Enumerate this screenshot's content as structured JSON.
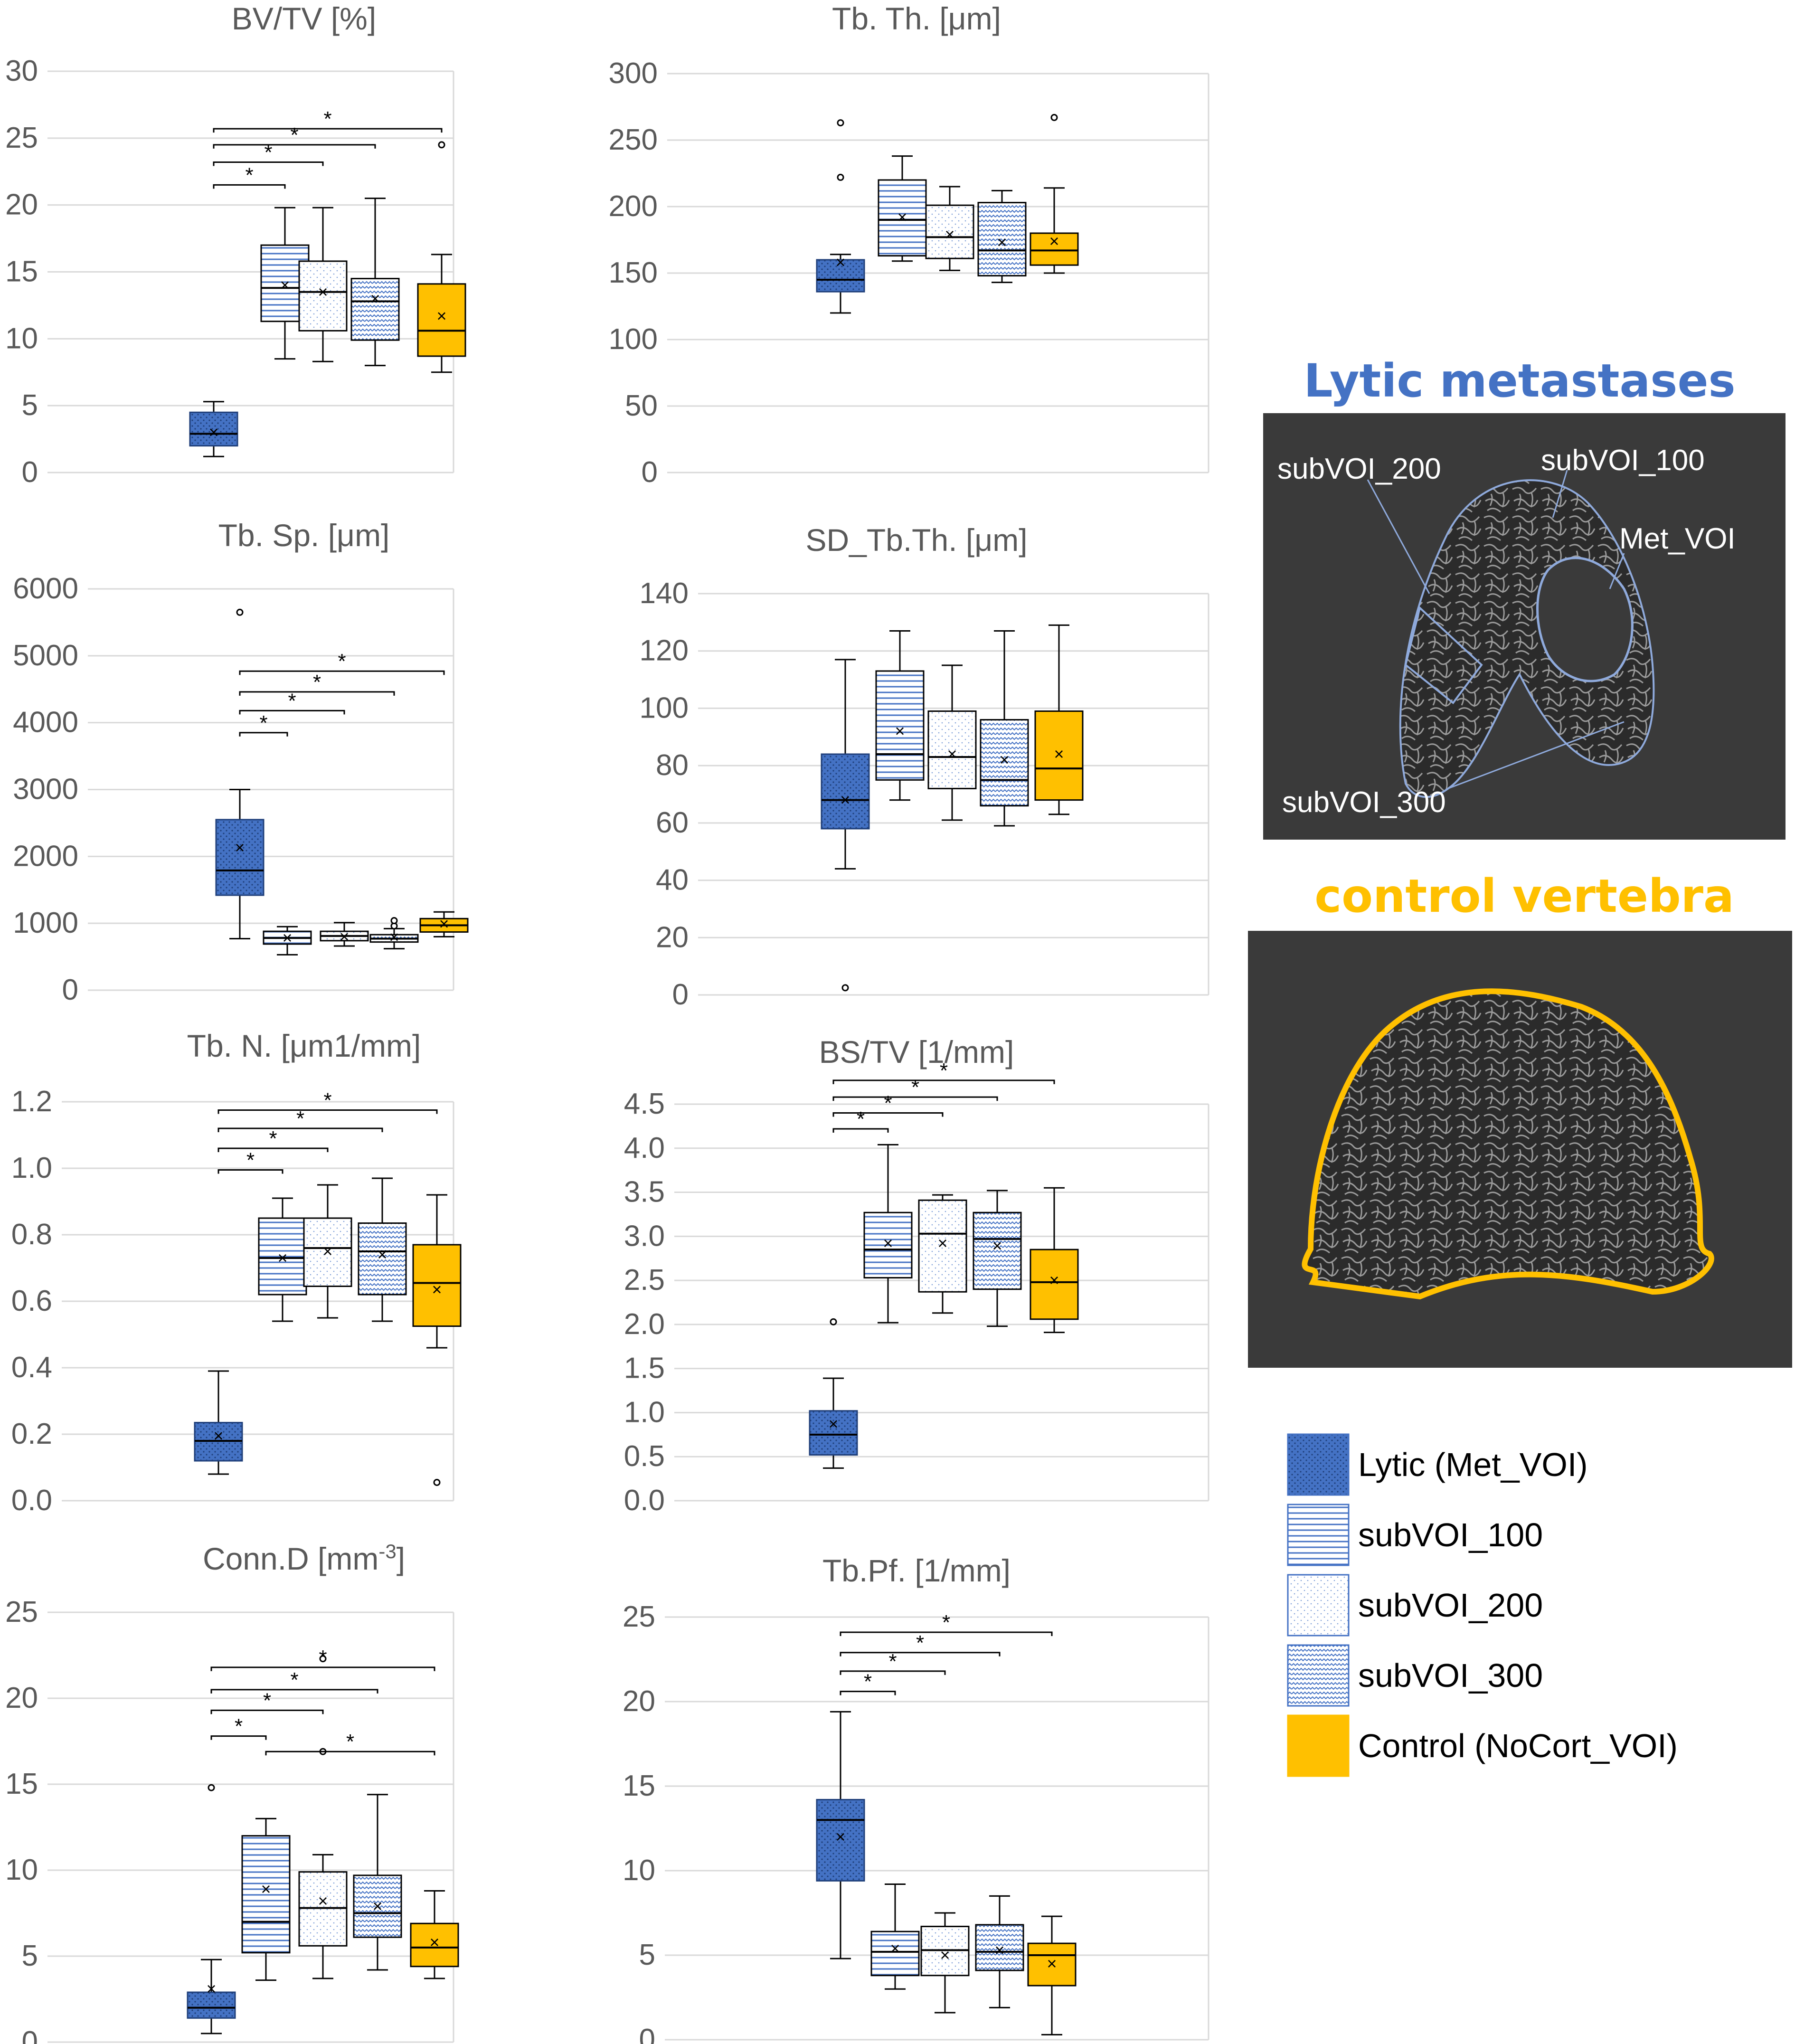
{
  "colors": {
    "lytic": "#4472c4",
    "subvoi": "#4472c4",
    "control": "#ffc000",
    "grid": "#d9d9d9",
    "text": "#595959"
  },
  "chart_data": [
    {
      "type": "box",
      "title": "BV/TV [%]",
      "ylim": [
        0,
        30
      ],
      "yticks": [
        "0",
        "5",
        "10",
        "15",
        "20",
        "25",
        "30"
      ],
      "series": [
        {
          "name": "Lytic (Met_VOI)",
          "pattern": "lytic",
          "min": 1.2,
          "q1": 2.0,
          "median": 2.9,
          "q3": 4.5,
          "max": 5.3,
          "mean": 3.0,
          "outliers": []
        },
        {
          "name": "subVOI_100",
          "pattern": "sub100",
          "min": 8.5,
          "q1": 11.3,
          "median": 13.8,
          "q3": 17.0,
          "max": 19.8,
          "mean": 14.0,
          "outliers": []
        },
        {
          "name": "subVOI_200",
          "pattern": "sub200",
          "min": 8.3,
          "q1": 10.6,
          "median": 13.5,
          "q3": 15.8,
          "max": 19.8,
          "mean": 13.5,
          "outliers": []
        },
        {
          "name": "subVOI_300",
          "pattern": "sub300",
          "min": 8.0,
          "q1": 9.9,
          "median": 12.8,
          "q3": 14.5,
          "max": 20.5,
          "mean": 13.0,
          "outliers": []
        },
        {
          "name": "Control (NoCort_VOI)",
          "pattern": "control",
          "min": 7.5,
          "q1": 8.7,
          "median": 10.6,
          "q3": 14.1,
          "max": 16.3,
          "mean": 11.7,
          "outliers": [
            24.5
          ]
        }
      ],
      "sig": [
        {
          "from": 0,
          "to": 1,
          "y": 21.5,
          "label": "*"
        },
        {
          "from": 0,
          "to": 2,
          "y": 23.2,
          "label": "*"
        },
        {
          "from": 0,
          "to": 3,
          "y": 24.5,
          "label": "*"
        },
        {
          "from": 0,
          "to": 4,
          "y": 25.7,
          "label": "*"
        }
      ]
    },
    {
      "type": "box",
      "title": "Tb. Th. [μm]",
      "ylim": [
        0,
        300
      ],
      "yticks": [
        "0",
        "50",
        "100",
        "150",
        "200",
        "250",
        "300"
      ],
      "series": [
        {
          "name": "Lytic (Met_VOI)",
          "pattern": "lytic",
          "min": 120,
          "q1": 136,
          "median": 145,
          "q3": 160,
          "max": 164,
          "mean": 158,
          "outliers": [
            222,
            263
          ]
        },
        {
          "name": "subVOI_100",
          "pattern": "sub100",
          "min": 159,
          "q1": 163,
          "median": 190,
          "q3": 220,
          "max": 238,
          "mean": 192,
          "outliers": []
        },
        {
          "name": "subVOI_200",
          "pattern": "sub200",
          "min": 152,
          "q1": 161,
          "median": 177,
          "q3": 201,
          "max": 215,
          "mean": 179,
          "outliers": []
        },
        {
          "name": "subVOI_300",
          "pattern": "sub300",
          "min": 143,
          "q1": 148,
          "median": 167,
          "q3": 203,
          "max": 212,
          "mean": 173,
          "outliers": []
        },
        {
          "name": "Control (NoCort_VOI)",
          "pattern": "control",
          "min": 150,
          "q1": 156,
          "median": 167,
          "q3": 180,
          "max": 214,
          "mean": 174,
          "outliers": [
            267
          ]
        }
      ],
      "sig": []
    },
    {
      "type": "box",
      "title": "Tb. Sp. [μm]",
      "ylim": [
        0,
        6000
      ],
      "yticks": [
        "0",
        "1000",
        "2000",
        "3000",
        "4000",
        "5000",
        "6000"
      ],
      "series": [
        {
          "name": "Lytic (Met_VOI)",
          "pattern": "lytic",
          "min": 770,
          "q1": 1420,
          "median": 1790,
          "q3": 2550,
          "max": 3000,
          "mean": 2130,
          "outliers": [
            5650
          ]
        },
        {
          "name": "subVOI_100",
          "pattern": "sub100",
          "min": 530,
          "q1": 690,
          "median": 780,
          "q3": 880,
          "max": 950,
          "mean": 780,
          "outliers": []
        },
        {
          "name": "subVOI_200",
          "pattern": "sub200",
          "min": 660,
          "q1": 740,
          "median": 810,
          "q3": 880,
          "max": 1010,
          "mean": 800,
          "outliers": []
        },
        {
          "name": "subVOI_300",
          "pattern": "sub300",
          "min": 620,
          "q1": 720,
          "median": 770,
          "q3": 830,
          "max": 920,
          "mean": 790,
          "outliers": [
            960,
            1040
          ]
        },
        {
          "name": "Control (NoCort_VOI)",
          "pattern": "control",
          "min": 800,
          "q1": 870,
          "median": 970,
          "q3": 1070,
          "max": 1170,
          "mean": 990,
          "outliers": []
        }
      ],
      "sig": [
        {
          "from": 0,
          "to": 1,
          "y": 3850,
          "label": "*"
        },
        {
          "from": 0,
          "to": 2,
          "y": 4180,
          "label": "*"
        },
        {
          "from": 0,
          "to": 3,
          "y": 4460,
          "label": "*"
        },
        {
          "from": 0,
          "to": 4,
          "y": 4770,
          "label": "*"
        }
      ]
    },
    {
      "type": "box",
      "title": "SD_Tb.Th. [μm]",
      "ylim": [
        0,
        140
      ],
      "yticks": [
        "0",
        "20",
        "40",
        "60",
        "80",
        "100",
        "120",
        "140"
      ],
      "series": [
        {
          "name": "Lytic (Met_VOI)",
          "pattern": "lytic",
          "min": 44,
          "q1": 58,
          "median": 68,
          "q3": 84,
          "max": 117,
          "mean": 68,
          "outliers": [
            2.5
          ]
        },
        {
          "name": "subVOI_100",
          "pattern": "sub100",
          "min": 68,
          "q1": 75,
          "median": 84,
          "q3": 113,
          "max": 127,
          "mean": 92,
          "outliers": []
        },
        {
          "name": "subVOI_200",
          "pattern": "sub200",
          "min": 61,
          "q1": 72,
          "median": 83,
          "q3": 99,
          "max": 115,
          "mean": 84,
          "outliers": []
        },
        {
          "name": "subVOI_300",
          "pattern": "sub300",
          "min": 59,
          "q1": 66,
          "median": 75,
          "q3": 96,
          "max": 127,
          "mean": 82,
          "outliers": []
        },
        {
          "name": "Control (NoCort_VOI)",
          "pattern": "control",
          "min": 63,
          "q1": 68,
          "median": 79,
          "q3": 99,
          "max": 129,
          "mean": 84,
          "outliers": []
        }
      ],
      "sig": []
    },
    {
      "type": "box",
      "title": "Tb. N. [μm1/mm]",
      "ylim": [
        0,
        1.2
      ],
      "yticks": [
        "0.0",
        "0.2",
        "0.4",
        "0.6",
        "0.8",
        "1.0",
        "1.2"
      ],
      "series": [
        {
          "name": "Lytic (Met_VOI)",
          "pattern": "lytic",
          "min": 0.08,
          "q1": 0.12,
          "median": 0.18,
          "q3": 0.235,
          "max": 0.39,
          "mean": 0.195,
          "outliers": []
        },
        {
          "name": "subVOI_100",
          "pattern": "sub100",
          "min": 0.54,
          "q1": 0.62,
          "median": 0.73,
          "q3": 0.85,
          "max": 0.91,
          "mean": 0.73,
          "outliers": []
        },
        {
          "name": "subVOI_200",
          "pattern": "sub200",
          "min": 0.55,
          "q1": 0.645,
          "median": 0.76,
          "q3": 0.85,
          "max": 0.95,
          "mean": 0.75,
          "outliers": []
        },
        {
          "name": "subVOI_300",
          "pattern": "sub300",
          "min": 0.54,
          "q1": 0.62,
          "median": 0.75,
          "q3": 0.835,
          "max": 0.97,
          "mean": 0.74,
          "outliers": []
        },
        {
          "name": "Control (NoCort_VOI)",
          "pattern": "control",
          "min": 0.46,
          "q1": 0.525,
          "median": 0.655,
          "q3": 0.77,
          "max": 0.92,
          "mean": 0.635,
          "outliers": [
            0.055
          ]
        }
      ],
      "sig": [
        {
          "from": 0,
          "to": 1,
          "y": 0.995,
          "label": "*"
        },
        {
          "from": 0,
          "to": 2,
          "y": 1.06,
          "label": "*"
        },
        {
          "from": 0,
          "to": 3,
          "y": 1.12,
          "label": "*"
        },
        {
          "from": 0,
          "to": 4,
          "y": 1.175,
          "label": "*"
        }
      ]
    },
    {
      "type": "box",
      "title": "BS/TV [1/mm]",
      "ylim": [
        0,
        4.5
      ],
      "yticks": [
        "0.0",
        "0.5",
        "1.0",
        "1.5",
        "2.0",
        "2.5",
        "3.0",
        "3.5",
        "4.0",
        "4.5"
      ],
      "series": [
        {
          "name": "Lytic (Met_VOI)",
          "pattern": "lytic",
          "min": 0.37,
          "q1": 0.52,
          "median": 0.75,
          "q3": 1.02,
          "max": 1.39,
          "mean": 0.87,
          "outliers": [
            2.03
          ]
        },
        {
          "name": "subVOI_100",
          "pattern": "sub100",
          "min": 2.02,
          "q1": 2.53,
          "median": 2.85,
          "q3": 3.27,
          "max": 4.04,
          "mean": 2.92,
          "outliers": []
        },
        {
          "name": "subVOI_200",
          "pattern": "sub200",
          "min": 2.13,
          "q1": 2.37,
          "median": 3.03,
          "q3": 3.41,
          "max": 3.47,
          "mean": 2.92,
          "outliers": []
        },
        {
          "name": "subVOI_300",
          "pattern": "sub300",
          "min": 1.98,
          "q1": 2.4,
          "median": 2.97,
          "q3": 3.27,
          "max": 3.52,
          "mean": 2.89,
          "outliers": []
        },
        {
          "name": "Control (NoCort_VOI)",
          "pattern": "control",
          "min": 1.91,
          "q1": 2.06,
          "median": 2.48,
          "q3": 2.85,
          "max": 3.55,
          "mean": 2.5,
          "outliers": []
        }
      ],
      "sig": [
        {
          "from": 0,
          "to": 1,
          "y": 4.22,
          "label": "*"
        },
        {
          "from": 0,
          "to": 2,
          "y": 4.4,
          "label": "*"
        },
        {
          "from": 0,
          "to": 3,
          "y": 4.58,
          "label": "*"
        },
        {
          "from": 0,
          "to": 4,
          "y": 4.77,
          "label": "*"
        }
      ]
    },
    {
      "type": "box",
      "title": "Conn.D [mm",
      "title_sup": "-3",
      "title_end": "]",
      "ylim": [
        0,
        25
      ],
      "yticks": [
        "0",
        "5",
        "10",
        "15",
        "20",
        "25"
      ],
      "series": [
        {
          "name": "Lytic (Met_VOI)",
          "pattern": "lytic",
          "min": 0.5,
          "q1": 1.4,
          "median": 2.0,
          "q3": 2.9,
          "max": 4.8,
          "mean": 3.1,
          "outliers": [
            14.8
          ]
        },
        {
          "name": "subVOI_100",
          "pattern": "sub100",
          "min": 3.6,
          "q1": 5.2,
          "median": 7.0,
          "q3": 12.0,
          "max": 13.0,
          "mean": 8.9,
          "outliers": []
        },
        {
          "name": "subVOI_200",
          "pattern": "sub200",
          "min": 3.7,
          "q1": 5.6,
          "median": 7.8,
          "q3": 9.9,
          "max": 10.9,
          "mean": 8.2,
          "outliers": [
            16.9,
            22.3
          ]
        },
        {
          "name": "subVOI_300",
          "pattern": "sub300",
          "min": 4.2,
          "q1": 6.1,
          "median": 7.5,
          "q3": 9.7,
          "max": 14.4,
          "mean": 7.9,
          "outliers": []
        },
        {
          "name": "Control (NoCort_VOI)",
          "pattern": "control",
          "min": 3.7,
          "q1": 4.4,
          "median": 5.5,
          "q3": 6.9,
          "max": 8.8,
          "mean": 5.8,
          "outliers": []
        }
      ],
      "sig": [
        {
          "from": 0,
          "to": 1,
          "y": 17.8,
          "label": "*"
        },
        {
          "from": 0,
          "to": 2,
          "y": 19.3,
          "label": "*"
        },
        {
          "from": 0,
          "to": 3,
          "y": 20.5,
          "label": "*"
        },
        {
          "from": 0,
          "to": 4,
          "y": 21.8,
          "label": "*"
        },
        {
          "from": 1,
          "to": 4,
          "y": 16.9,
          "label": "*"
        }
      ]
    },
    {
      "type": "box",
      "title": "Tb.Pf. [1/mm]",
      "ylim": [
        0,
        25
      ],
      "yticks": [
        "0",
        "5",
        "10",
        "15",
        "20",
        "25"
      ],
      "series": [
        {
          "name": "Lytic (Met_VOI)",
          "pattern": "lytic",
          "min": 4.8,
          "q1": 9.4,
          "median": 13.0,
          "q3": 14.2,
          "max": 19.4,
          "mean": 12.0,
          "outliers": []
        },
        {
          "name": "subVOI_100",
          "pattern": "sub100",
          "min": 3.0,
          "q1": 3.8,
          "median": 5.2,
          "q3": 6.4,
          "max": 9.2,
          "mean": 5.4,
          "outliers": []
        },
        {
          "name": "subVOI_200",
          "pattern": "sub200",
          "min": 1.6,
          "q1": 3.8,
          "median": 5.3,
          "q3": 6.7,
          "max": 7.5,
          "mean": 5.0,
          "outliers": []
        },
        {
          "name": "subVOI_300",
          "pattern": "sub300",
          "min": 1.9,
          "q1": 4.1,
          "median": 5.2,
          "q3": 6.8,
          "max": 8.5,
          "mean": 5.3,
          "outliers": []
        },
        {
          "name": "Control (NoCort_VOI)",
          "pattern": "control",
          "min": 0.3,
          "q1": 3.2,
          "median": 5.0,
          "q3": 5.7,
          "max": 7.3,
          "mean": 4.5,
          "outliers": []
        }
      ],
      "sig": [
        {
          "from": 0,
          "to": 1,
          "y": 20.6,
          "label": "*"
        },
        {
          "from": 0,
          "to": 2,
          "y": 21.8,
          "label": "*"
        },
        {
          "from": 0,
          "to": 3,
          "y": 22.9,
          "label": "*"
        },
        {
          "from": 0,
          "to": 4,
          "y": 24.1,
          "label": "*"
        }
      ]
    }
  ],
  "images": {
    "lytic": {
      "heading": "Lytic metastases",
      "labels": [
        "subVOI_200",
        "subVOI_100",
        "Met_VOI",
        "subVOI_300"
      ]
    },
    "control": {
      "heading": "control vertebra"
    }
  },
  "legend": [
    {
      "label": "Lytic (Met_VOI)",
      "pattern": "lytic"
    },
    {
      "label": "subVOI_100",
      "pattern": "sub100"
    },
    {
      "label": "subVOI_200",
      "pattern": "sub200"
    },
    {
      "label": "subVOI_300",
      "pattern": "sub300"
    },
    {
      "label": "Control (NoCort_VOI)",
      "pattern": "control"
    }
  ]
}
